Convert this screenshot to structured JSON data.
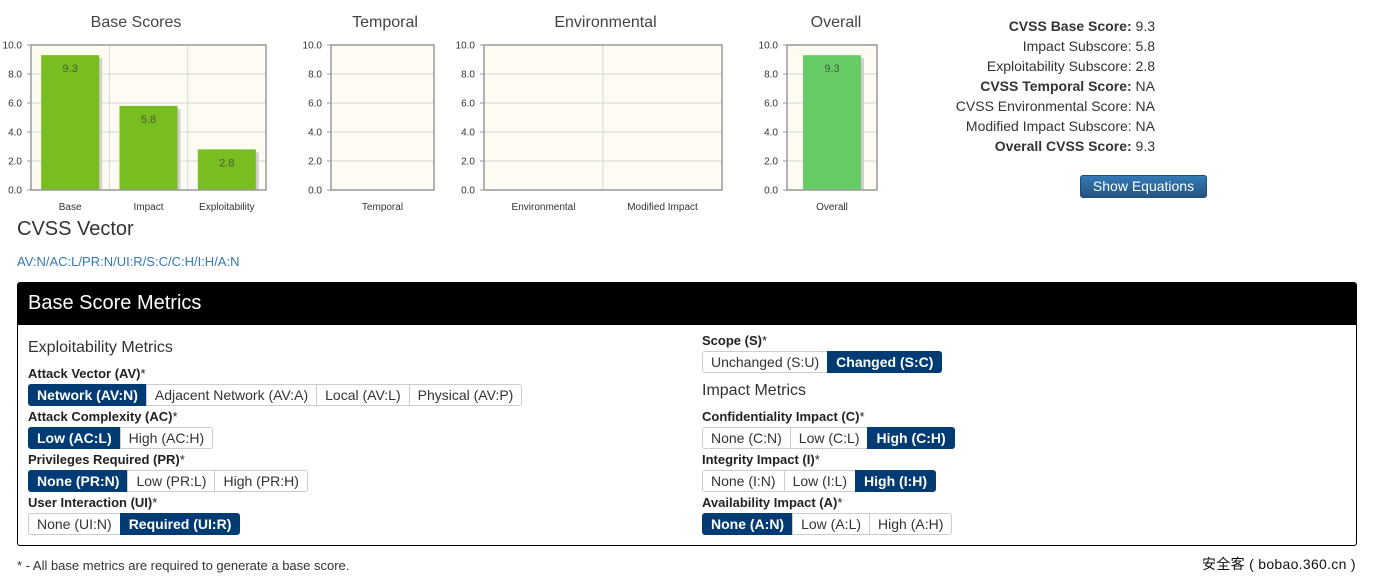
{
  "chart_data": [
    {
      "type": "bar",
      "title": "Base Scores",
      "categories": [
        "Base",
        "Impact",
        "Exploitability"
      ],
      "values": [
        9.3,
        5.8,
        2.8
      ],
      "value_labels": [
        "9.3",
        "5.8",
        "2.8"
      ],
      "ylim": [
        0,
        10
      ],
      "yticks": [
        "0.0",
        "2.0",
        "4.0",
        "6.0",
        "8.0",
        "10.0"
      ],
      "bar_color": "#78be20",
      "grid": true
    },
    {
      "type": "bar",
      "title": "Temporal",
      "categories": [
        "Temporal"
      ],
      "values": [
        null
      ],
      "value_labels": [
        ""
      ],
      "ylim": [
        0,
        10
      ],
      "yticks": [
        "0.0",
        "2.0",
        "4.0",
        "6.0",
        "8.0",
        "10.0"
      ],
      "grid": true
    },
    {
      "type": "bar",
      "title": "Environmental",
      "categories": [
        "Environmental",
        "Modified Impact"
      ],
      "values": [
        null,
        null
      ],
      "value_labels": [
        "",
        ""
      ],
      "ylim": [
        0,
        10
      ],
      "yticks": [
        "0.0",
        "2.0",
        "4.0",
        "6.0",
        "8.0",
        "10.0"
      ],
      "grid": true
    },
    {
      "type": "bar",
      "title": "Overall",
      "categories": [
        "Overall"
      ],
      "values": [
        9.3
      ],
      "value_labels": [
        "9.3"
      ],
      "ylim": [
        0,
        10
      ],
      "yticks": [
        "0.0",
        "2.0",
        "4.0",
        "6.0",
        "8.0",
        "10.0"
      ],
      "bar_color": "#66cc66",
      "grid": true
    }
  ],
  "summary": [
    {
      "label": "CVSS Base Score:",
      "value": "9.3",
      "bold": true
    },
    {
      "label": "Impact Subscore:",
      "value": "5.8",
      "bold": false
    },
    {
      "label": "Exploitability Subscore:",
      "value": "2.8",
      "bold": false
    },
    {
      "label": "CVSS Temporal Score:",
      "value": "NA",
      "bold": true
    },
    {
      "label": "CVSS Environmental Score:",
      "value": "NA",
      "bold": false
    },
    {
      "label": "Modified Impact Subscore:",
      "value": "NA",
      "bold": false
    },
    {
      "label": "Overall CVSS Score:",
      "value": "9.3",
      "bold": true
    }
  ],
  "show_equations_label": "Show Equations",
  "vector": {
    "title": "CVSS Vector",
    "string": "AV:N/AC:L/PR:N/UI:R/S:C/C:H/I:H/A:N"
  },
  "panel": {
    "title": "Base Score Metrics",
    "exploitability_heading": "Exploitability Metrics",
    "impact_heading": "Impact Metrics"
  },
  "metrics_left": [
    {
      "label": "Attack Vector (AV)",
      "star": "*",
      "options": [
        "Network (AV:N)",
        "Adjacent Network (AV:A)",
        "Local (AV:L)",
        "Physical (AV:P)"
      ],
      "selected": 0
    },
    {
      "label": "Attack Complexity (AC)",
      "star": "*",
      "options": [
        "Low (AC:L)",
        "High (AC:H)"
      ],
      "selected": 0
    },
    {
      "label": "Privileges Required (PR)",
      "star": "*",
      "options": [
        "None (PR:N)",
        "Low (PR:L)",
        "High (PR:H)"
      ],
      "selected": 0
    },
    {
      "label": "User Interaction (UI)",
      "star": "*",
      "options": [
        "None (UI:N)",
        "Required (UI:R)"
      ],
      "selected": 1
    }
  ],
  "scope_metric": {
    "label": "Scope (S)",
    "star": "*",
    "options": [
      "Unchanged (S:U)",
      "Changed (S:C)"
    ],
    "selected": 1
  },
  "metrics_right": [
    {
      "label": "Confidentiality Impact (C)",
      "star": "*",
      "options": [
        "None (C:N)",
        "Low (C:L)",
        "High (C:H)"
      ],
      "selected": 2
    },
    {
      "label": "Integrity Impact (I)",
      "star": "*",
      "options": [
        "None (I:N)",
        "Low (I:L)",
        "High (I:H)"
      ],
      "selected": 2
    },
    {
      "label": "Availability Impact (A)",
      "star": "*",
      "options": [
        "None (A:N)",
        "Low (A:L)",
        "High (A:H)"
      ],
      "selected": 0
    }
  ],
  "footnote": "* - All base metrics are required to generate a base score.",
  "watermark": "安全客 ( bobao.360.cn )"
}
